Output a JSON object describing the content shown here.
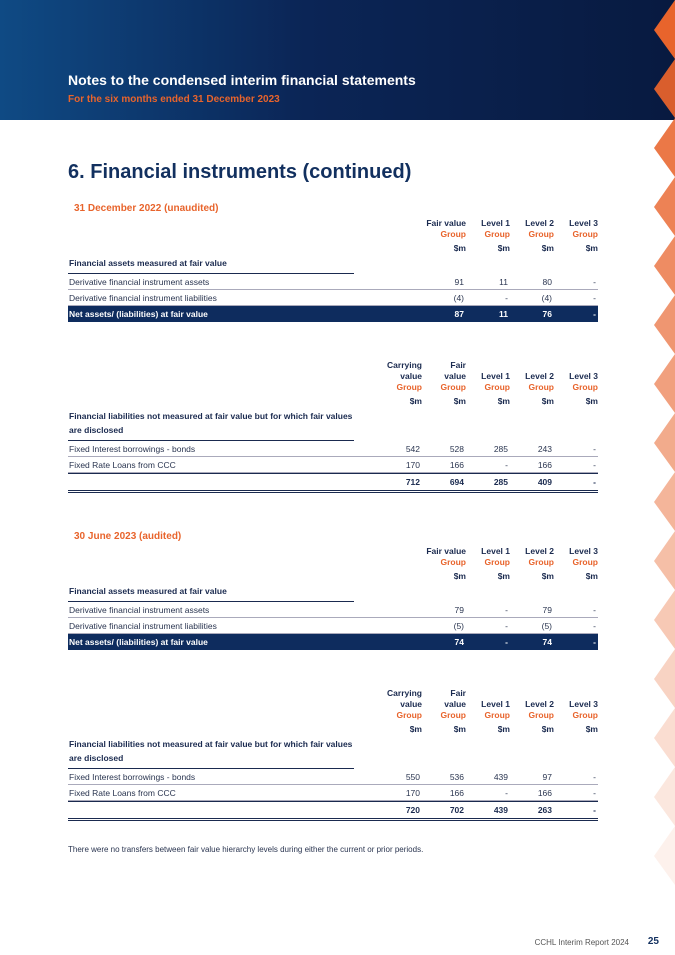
{
  "header": {
    "title": "Notes to the condensed interim financial statements",
    "subtitle": "For the six months ended 31 December 2023"
  },
  "section_title": "6. Financial instruments (continued)",
  "sections": [
    {
      "heading": "31 December 2022 (unaudited)",
      "tables": [
        {
          "columns": [
            {
              "name": [
                "Fair value"
              ],
              "group": "Group",
              "unit": "$m"
            },
            {
              "name": [
                "Level 1"
              ],
              "group": "Group",
              "unit": "$m"
            },
            {
              "name": [
                "Level 2"
              ],
              "group": "Group",
              "unit": "$m"
            },
            {
              "name": [
                "Level 3"
              ],
              "group": "Group",
              "unit": "$m"
            }
          ],
          "row_header": "Financial assets measured at fair value",
          "rows": [
            {
              "label": "Derivative financial instrument assets",
              "values": [
                "91",
                "11",
                "80",
                "-"
              ]
            },
            {
              "label": "Derivative financial instrument liabilities",
              "values": [
                "(4)",
                "-",
                "(4)",
                "-"
              ]
            }
          ],
          "total": {
            "label": "Net assets/ (liabilities) at fair value",
            "values": [
              "87",
              "11",
              "76",
              "-"
            ]
          }
        },
        {
          "columns": [
            {
              "name": [
                "Carrying",
                "value"
              ],
              "group": "Group",
              "unit": "$m"
            },
            {
              "name": [
                "Fair",
                "value"
              ],
              "group": "Group",
              "unit": "$m"
            },
            {
              "name": [
                "Level 1"
              ],
              "group": "Group",
              "unit": "$m"
            },
            {
              "name": [
                "Level 2"
              ],
              "group": "Group",
              "unit": "$m"
            },
            {
              "name": [
                "Level 3"
              ],
              "group": "Group",
              "unit": "$m"
            }
          ],
          "row_header": "Financial liabilities not measured at fair value but for which fair values are disclosed",
          "rows": [
            {
              "label": "Fixed Interest borrowings - bonds",
              "values": [
                "542",
                "528",
                "285",
                "243",
                "-"
              ]
            },
            {
              "label": "Fixed Rate Loans from CCC",
              "values": [
                "170",
                "166",
                "-",
                "166",
                "-"
              ]
            }
          ],
          "total": {
            "values": [
              "712",
              "694",
              "285",
              "409",
              "-"
            ]
          }
        }
      ]
    },
    {
      "heading": "30 June 2023 (audited)",
      "tables": [
        {
          "columns": [
            {
              "name": [
                "Fair value"
              ],
              "group": "Group",
              "unit": "$m"
            },
            {
              "name": [
                "Level 1"
              ],
              "group": "Group",
              "unit": "$m"
            },
            {
              "name": [
                "Level 2"
              ],
              "group": "Group",
              "unit": "$m"
            },
            {
              "name": [
                "Level 3"
              ],
              "group": "Group",
              "unit": "$m"
            }
          ],
          "row_header": "Financial assets measured at fair value",
          "rows": [
            {
              "label": "Derivative financial instrument assets",
              "values": [
                "79",
                "-",
                "79",
                "-"
              ]
            },
            {
              "label": "Derivative financial instrument liabilities",
              "values": [
                "(5)",
                "-",
                "(5)",
                "-"
              ]
            }
          ],
          "total": {
            "label": "Net assets/ (liabilities) at fair value",
            "values": [
              "74",
              "-",
              "74",
              "-"
            ]
          }
        },
        {
          "columns": [
            {
              "name": [
                "Carrying",
                "value"
              ],
              "group": "Group",
              "unit": "$m"
            },
            {
              "name": [
                "Fair",
                "value"
              ],
              "group": "Group",
              "unit": "$m"
            },
            {
              "name": [
                "Level 1"
              ],
              "group": "Group",
              "unit": "$m"
            },
            {
              "name": [
                "Level 2"
              ],
              "group": "Group",
              "unit": "$m"
            },
            {
              "name": [
                "Level 3"
              ],
              "group": "Group",
              "unit": "$m"
            }
          ],
          "row_header": "Financial liabilities not measured at fair value but for which fair values are disclosed",
          "rows": [
            {
              "label": "Fixed Interest borrowings - bonds",
              "values": [
                "550",
                "536",
                "439",
                "97",
                "-"
              ]
            },
            {
              "label": "Fixed Rate Loans from CCC",
              "values": [
                "170",
                "166",
                "-",
                "166",
                "-"
              ]
            }
          ],
          "total": {
            "values": [
              "720",
              "702",
              "439",
              "263",
              "-"
            ]
          }
        }
      ]
    }
  ],
  "note": "There were no transfers between fair value hierarchy levels during either the current or prior periods.",
  "footer": {
    "report": "CCHL Interim Report 2024",
    "page": "25"
  }
}
